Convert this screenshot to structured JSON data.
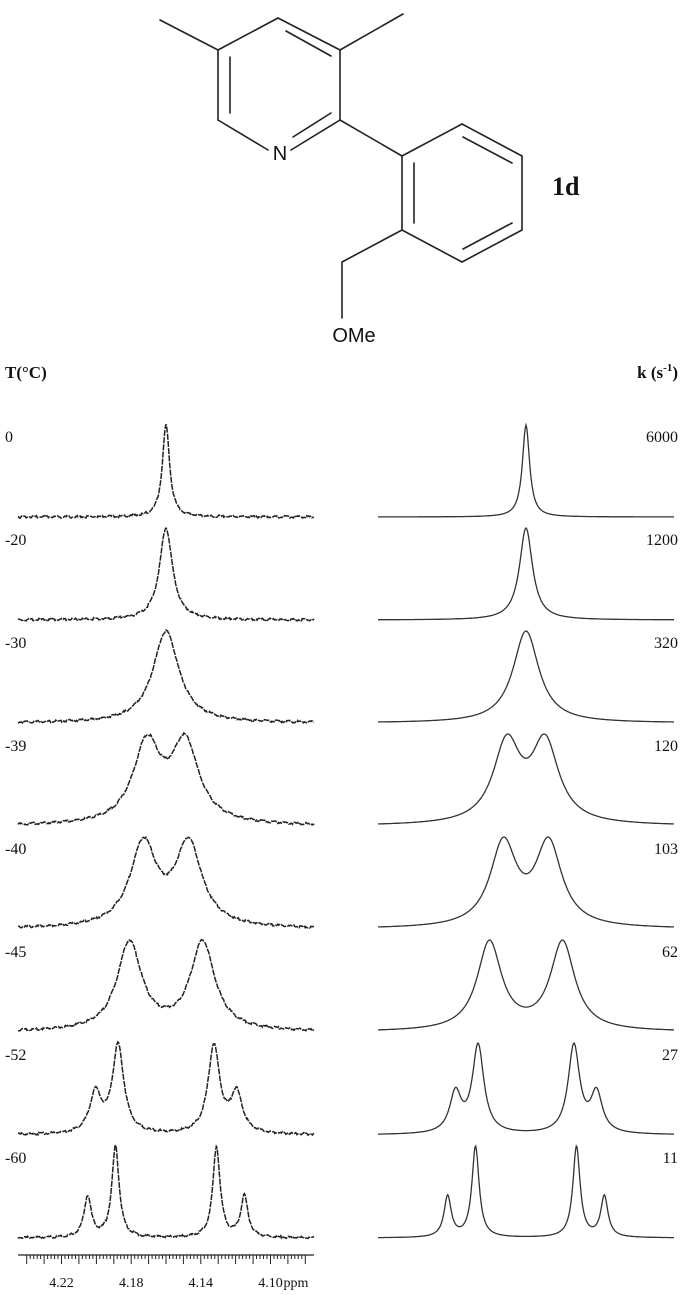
{
  "molecule": {
    "n_label": "N",
    "ome_label": "OMe",
    "compound_label": "1d"
  },
  "chart_data": {
    "type": "line",
    "title": "",
    "left_header": "T(°C)",
    "right_header": "k (s",
    "right_header_sup": "-1",
    "right_header_close": ")",
    "xlabel": "ppm",
    "x_ticks": [
      "4.22",
      "4.18",
      "4.14",
      "4.10"
    ],
    "xlim": [
      4.245,
      4.075
    ],
    "temperatures": [
      "0",
      "-20",
      "-30",
      "-39",
      "-40",
      "-45",
      "-52",
      "-60"
    ],
    "rates": [
      "6000",
      "1200",
      "320",
      "120",
      "103",
      "62",
      "27",
      "11"
    ],
    "series": [
      {
        "temperature": "0",
        "rate": "6000",
        "center": 4.16,
        "hwhm": 0.0025,
        "splitting": 0,
        "satellite": 0
      },
      {
        "temperature": "-20",
        "rate": "1200",
        "center": 4.16,
        "hwhm": 0.0045,
        "splitting": 0,
        "satellite": 0
      },
      {
        "temperature": "-30",
        "rate": "320",
        "center": 4.16,
        "hwhm": 0.009,
        "splitting": 0,
        "satellite": 0
      },
      {
        "temperature": "-39",
        "rate": "120",
        "center": 4.16,
        "hwhm": 0.0095,
        "splitting": 0.022,
        "satellite": 0
      },
      {
        "temperature": "-40",
        "rate": "103",
        "center": 4.16,
        "hwhm": 0.0092,
        "splitting": 0.026,
        "satellite": 0
      },
      {
        "temperature": "-45",
        "rate": "62",
        "center": 4.16,
        "hwhm": 0.0085,
        "splitting": 0.042,
        "satellite": 0
      },
      {
        "temperature": "-52",
        "rate": "27",
        "center": 4.16,
        "hwhm": 0.004,
        "splitting": 0.055,
        "satellite": 0.013
      },
      {
        "temperature": "-60",
        "rate": "11",
        "center": 4.16,
        "hwhm": 0.0025,
        "splitting": 0.058,
        "satellite": 0.016
      }
    ]
  }
}
